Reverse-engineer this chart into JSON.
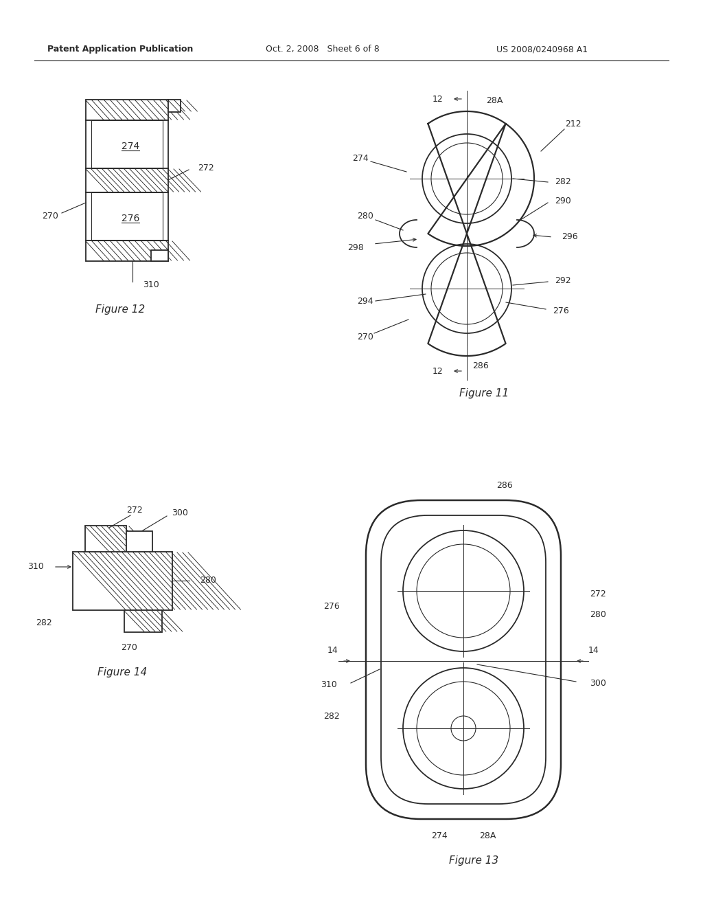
{
  "bg_color": "#ffffff",
  "line_color": "#2a2a2a",
  "header_left": "Patent Application Publication",
  "header_mid": "Oct. 2, 2008   Sheet 6 of 8",
  "header_right": "US 2008/0240968 A1",
  "fig11_caption": "Figure 11",
  "fig12_caption": "Figure 12",
  "fig13_caption": "Figure 13",
  "fig14_caption": "Figure 14"
}
